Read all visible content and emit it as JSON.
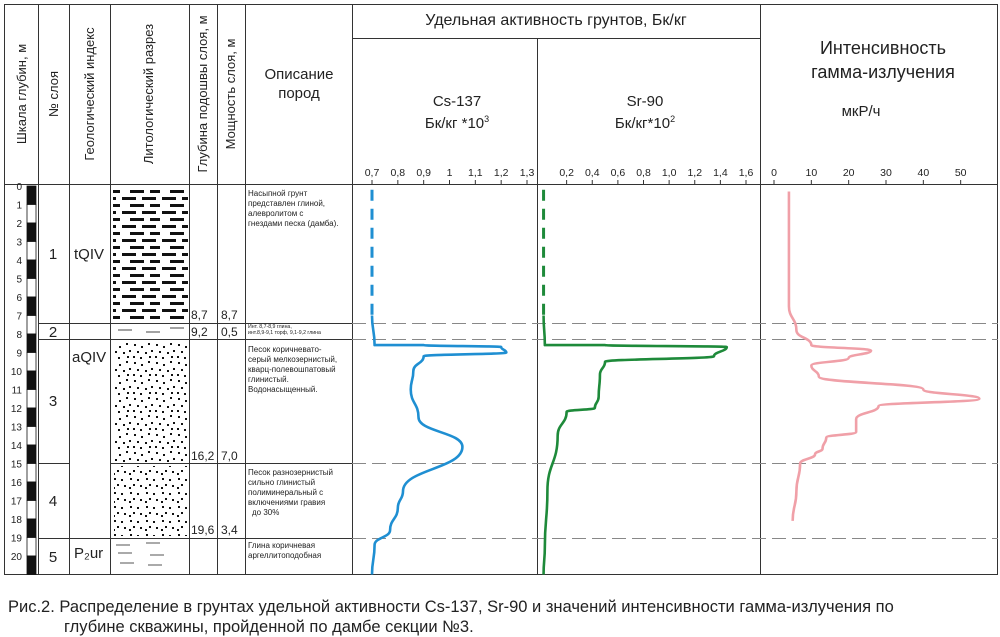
{
  "header": {
    "depth_scale": "Шкала глубин, м",
    "layer_no": "№ слоя",
    "geo_index": "Геологический индекс",
    "litho": "Литологический разрез",
    "base_depth": "Глубина подошвы слоя, м",
    "thickness": "Мощность слоя, м",
    "description_1": "Описание",
    "description_2": "пород",
    "activity_title": "Удельная активность грунтов, Бк/кг",
    "cs_name": "Cs-137",
    "cs_unit": "Бк/кг *10",
    "cs_exp": "3",
    "sr_name": "Sr-90",
    "sr_unit": "Бк/кг*10",
    "sr_exp": "2",
    "gamma_title_1": "Интенсивность",
    "gamma_title_2": "гамма-излучения",
    "gamma_unit": "мкР/ч"
  },
  "depth_ticks": [
    "0",
    "1",
    "2",
    "3",
    "4",
    "5",
    "6",
    "7",
    "8",
    "9",
    "10",
    "11",
    "12",
    "13",
    "14",
    "15",
    "16",
    "17",
    "18",
    "19",
    "20"
  ],
  "layers": [
    {
      "no": "1",
      "index": "tQIV",
      "base": "8,7",
      "thickness": "8,7",
      "description": [
        "Насыпной грунт",
        "представлен глиной,",
        "алевролитом с",
        "гнездами песка (дамба)."
      ]
    },
    {
      "no": "2",
      "index": "",
      "base": "9,2",
      "thickness": "0,5",
      "description": [
        "Инт. 8,7-8,9 глина,",
        "инт.8,9-9,1 торф, 9,1-9,2 глина"
      ]
    },
    {
      "no": "3",
      "index": "aQIV",
      "base": "16,2",
      "thickness": "7,0",
      "description": [
        "Песок коричневато-",
        "серый мелкозернистый,",
        "кварц-полевошпатовый",
        "глинистый.",
        "Водонасыщенный."
      ]
    },
    {
      "no": "4",
      "index": "",
      "base": "19,6",
      "thickness": "3,4",
      "description": [
        "Песок разнозернистый",
        "сильно глинистый",
        "полиминеральный с",
        "включениями гравия",
        "до 30%"
      ]
    },
    {
      "no": "5",
      "index": "P₂ur",
      "base": "",
      "thickness": "",
      "description": [
        "Глина коричневая",
        "аргеллитоподобная"
      ]
    }
  ],
  "caption": {
    "line1": "Рис.2. Распределение в грунтах удельной активности Cs-137, Sr-90 и значений интенсивности гамма-излучения по",
    "line2": "глубине скважины, пройденной по дамбе секции №3."
  },
  "colors": {
    "cs": "#1f8fd2",
    "sr": "#1e8a3a",
    "gamma": "#f0a0a8",
    "dash": "#888888"
  },
  "chart_data": [
    {
      "type": "line",
      "y_axis": "depth",
      "ylim": [
        0,
        20.8
      ],
      "xlim": [
        0.7,
        1.3
      ],
      "x_ticks": [
        "0,7",
        "0,8",
        "0,9",
        "1",
        "1,1",
        "1,2",
        "1,3"
      ],
      "series": [
        {
          "name": "Cs-137",
          "points": [
            [
              0.7,
              0
            ],
            [
              0.7,
              7.0
            ],
            [
              0.71,
              8.6
            ],
            [
              0.9,
              8.6
            ],
            [
              1.2,
              8.7
            ],
            [
              1.22,
              9.0
            ],
            [
              0.9,
              9.2
            ],
            [
              0.86,
              10
            ],
            [
              0.85,
              11
            ],
            [
              0.88,
              12.5
            ],
            [
              1.05,
              14.1
            ],
            [
              0.82,
              16.5
            ],
            [
              0.8,
              17.4
            ],
            [
              0.77,
              18.6
            ],
            [
              0.71,
              19.4
            ],
            [
              0.7,
              21
            ]
          ]
        }
      ]
    },
    {
      "type": "line",
      "y_axis": "depth",
      "ylim": [
        0,
        20.8
      ],
      "xlim": [
        0.0,
        1.6
      ],
      "x_ticks": [
        "0,2",
        "0,4",
        "0,6",
        "0,8",
        "1,0",
        "1,2",
        "1,4",
        "1,6"
      ],
      "series": [
        {
          "name": "Sr-90",
          "points": [
            [
              0.02,
              0
            ],
            [
              0.02,
              7.0
            ],
            [
              0.03,
              8.6
            ],
            [
              0.5,
              8.6
            ],
            [
              1.45,
              8.7
            ],
            [
              1.35,
              9.2
            ],
            [
              0.5,
              9.5
            ],
            [
              0.46,
              10.2
            ],
            [
              0.45,
              11.4
            ],
            [
              0.42,
              12.0
            ],
            [
              0.2,
              12.2
            ],
            [
              0.13,
              13.5
            ],
            [
              0.05,
              16.5
            ],
            [
              0.03,
              19.5
            ],
            [
              0.02,
              21
            ]
          ]
        }
      ]
    },
    {
      "type": "line",
      "y_axis": "depth",
      "ylim": [
        0,
        20.8
      ],
      "xlim": [
        0,
        60
      ],
      "x_ticks": [
        "0",
        "10",
        "20",
        "30",
        "40",
        "50"
      ],
      "series": [
        {
          "name": "Гамма",
          "points": [
            [
              4,
              0.3
            ],
            [
              4,
              6.5
            ],
            [
              6,
              7.8
            ],
            [
              10,
              8.6
            ],
            [
              26,
              8.9
            ],
            [
              20,
              9.3
            ],
            [
              10,
              9.7
            ],
            [
              12,
              10.3
            ],
            [
              40,
              11.0
            ],
            [
              55,
              11.5
            ],
            [
              28,
              11.9
            ],
            [
              22,
              12.6
            ],
            [
              22,
              13.3
            ],
            [
              14,
              13.6
            ],
            [
              13,
              14.2
            ],
            [
              11,
              14.5
            ],
            [
              7,
              15.0
            ],
            [
              6,
              16.5
            ],
            [
              5,
              18.1
            ]
          ]
        }
      ]
    }
  ]
}
